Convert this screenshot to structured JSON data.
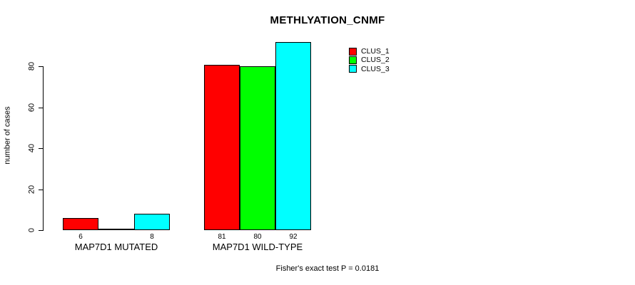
{
  "chart_data": {
    "type": "bar",
    "title": "METHLYATION_CNMF",
    "ylabel": "number of cases",
    "xlabel": "",
    "categories": [
      "MAP7D1 MUTATED",
      "MAP7D1 WILD-TYPE"
    ],
    "series": [
      {
        "name": "CLUS_1",
        "color": "#ff0000",
        "values": [
          6,
          81
        ]
      },
      {
        "name": "CLUS_2",
        "color": "#00ff00",
        "values": [
          0,
          80
        ]
      },
      {
        "name": "CLUS_3",
        "color": "#00ffff",
        "values": [
          8,
          92
        ]
      }
    ],
    "yticks": [
      0,
      20,
      40,
      60,
      80
    ],
    "ylim": [
      0,
      92
    ],
    "grid": false,
    "legend_position": "top-right",
    "bar_value_labels_shown": [
      "6",
      "8",
      "81",
      "80",
      "92"
    ],
    "annotation": "Fisher's exact test P = 0.0181",
    "colors": {
      "background": "#ffffff",
      "axis": "#000000",
      "text": "#000000",
      "bar_border": "#000000"
    }
  }
}
